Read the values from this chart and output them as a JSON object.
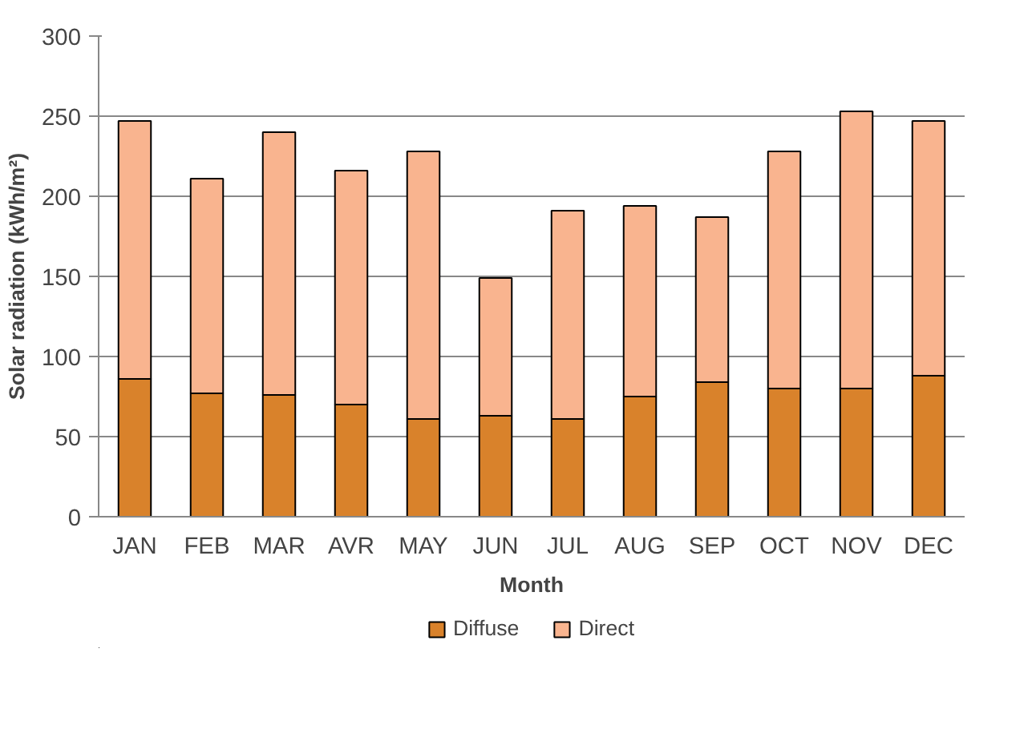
{
  "chart_data": {
    "type": "bar",
    "stacked": true,
    "xlabel": "Month",
    "ylabel": "Solar radiation (kWh/m²)",
    "categories": [
      "JAN",
      "FEB",
      "MAR",
      "AVR",
      "MAY",
      "JUN",
      "JUL",
      "AUG",
      "SEP",
      "OCT",
      "NOV",
      "DEC"
    ],
    "series": [
      {
        "name": "Diffuse",
        "color": "#d9822b",
        "values": [
          86,
          77,
          76,
          70,
          61,
          63,
          61,
          75,
          84,
          80,
          80,
          88
        ]
      },
      {
        "name": "Direct",
        "color": "#f9b48f",
        "values": [
          161,
          134,
          164,
          146,
          167,
          86,
          130,
          119,
          103,
          148,
          173,
          159
        ]
      }
    ],
    "ylim": [
      0,
      300
    ],
    "yticks": [
      0,
      50,
      100,
      150,
      200,
      250,
      300
    ],
    "grid": "y",
    "legend": "bottom"
  }
}
